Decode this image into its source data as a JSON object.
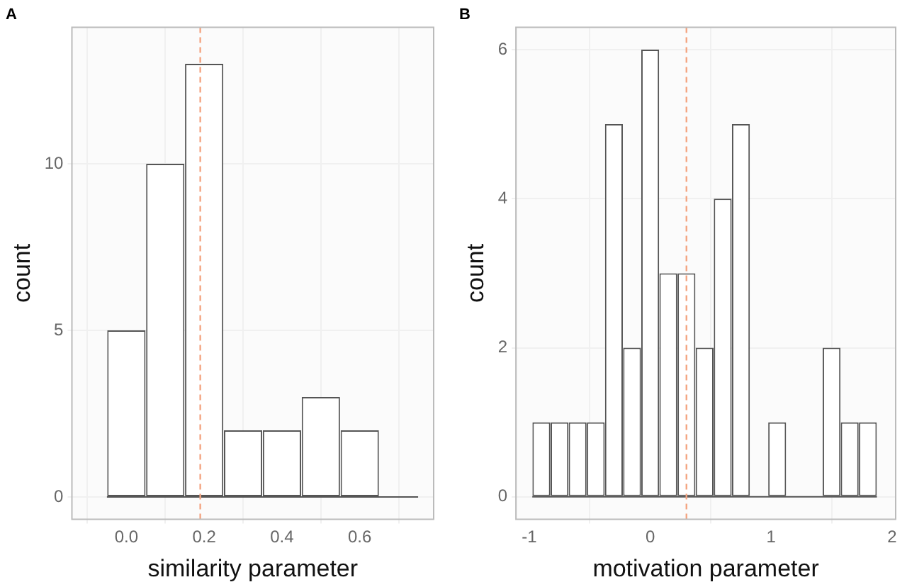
{
  "chart_data": [
    {
      "type": "histogram",
      "title": "A",
      "xlabel": "similarity parameter",
      "ylabel": "count",
      "bins": [
        -0.05,
        0.05,
        0.15,
        0.25,
        0.35,
        0.45,
        0.55,
        0.65,
        0.75
      ],
      "values": [
        5,
        10,
        13,
        2,
        2,
        3,
        2,
        0
      ],
      "color": "#ffffff",
      "xlim": [
        -0.14,
        0.79
      ],
      "ylim": [
        -0.67,
        14.1
      ],
      "xticks": [
        {
          "value": 0,
          "label": "0.0"
        },
        {
          "value": 0.2,
          "label": "0.2"
        },
        {
          "value": 0.4,
          "label": "0.4"
        },
        {
          "value": 0.6,
          "label": "0.6"
        }
      ],
      "yticks": [
        0,
        5,
        10
      ],
      "grid": true,
      "legend": false,
      "ref_lines": [
        {
          "axis": "x",
          "value": 0.19,
          "color": "#f4a582",
          "line_style": "dashed"
        }
      ]
    },
    {
      "type": "histogram",
      "title": "B",
      "xlabel": "motivation parameter",
      "ylabel": "count",
      "bins": [
        -0.975,
        -0.825,
        -0.675,
        -0.525,
        -0.375,
        -0.225,
        -0.075,
        0.075,
        0.225,
        0.375,
        0.525,
        0.675,
        0.825,
        0.975,
        1.125,
        1.275,
        1.425,
        1.575,
        1.725,
        1.875
      ],
      "values": [
        1,
        1,
        1,
        1,
        5,
        2,
        6,
        3,
        3,
        2,
        4,
        5,
        0,
        1,
        0,
        0,
        2,
        1,
        1
      ],
      "color": "#ffffff",
      "xlim": [
        -1.11,
        2.03
      ],
      "ylim": [
        -0.3,
        6.3
      ],
      "xticks": [
        -1,
        0,
        1,
        2
      ],
      "yticks": [
        0,
        2,
        4,
        6
      ],
      "grid": true,
      "legend": false,
      "ref_lines": [
        {
          "axis": "x",
          "value": 0.3,
          "color": "#f4a582",
          "line_style": "dashed"
        }
      ]
    }
  ]
}
